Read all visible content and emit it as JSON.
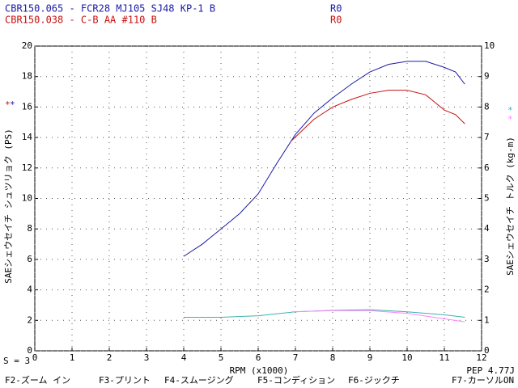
{
  "header": {
    "lines": [
      {
        "text": "CBR150.065 - FCR28 MJ105 SJ48 KP-1 B",
        "tag": "R0",
        "color": "#1a1aa8"
      },
      {
        "text": "CBR150.038 - C-B AA #110 B",
        "tag": "R0",
        "color": "#c81010"
      }
    ]
  },
  "chart_data": {
    "type": "line",
    "x_label": "RPM (x1000)",
    "y_label": "SAEシェウセイチ シュツリョク (PS)",
    "y2_label": "SAEシェウセイチ トルク (kg-m)",
    "xlim": [
      0,
      12
    ],
    "xticks": [
      0,
      1,
      2,
      3,
      4,
      5,
      6,
      7,
      8,
      9,
      10,
      11,
      12
    ],
    "ylim": [
      0,
      20
    ],
    "yticks": [
      0,
      2,
      4,
      6,
      8,
      10,
      12,
      14,
      16,
      18,
      20
    ],
    "y2lim": [
      0,
      10
    ],
    "y2ticks": [
      0,
      1,
      2,
      3,
      4,
      5,
      6,
      7,
      8,
      9,
      10
    ],
    "grid": true,
    "marks": {
      "left": "*",
      "right": "*"
    },
    "series": [
      {
        "color": "#1a1aa8",
        "axis": "y",
        "x": [
          4,
          4.5,
          5,
          5.5,
          6,
          6.5,
          7,
          7.5,
          8,
          8.5,
          9,
          9.5,
          10,
          10.5,
          11,
          11.3,
          11.55
        ],
        "values": [
          6.2,
          7.0,
          8.0,
          9.0,
          10.3,
          12.3,
          14.2,
          15.6,
          16.6,
          17.5,
          18.3,
          18.8,
          19.0,
          19.0,
          18.6,
          18.3,
          17.5
        ]
      },
      {
        "color": "#c81010",
        "axis": "y",
        "x": [
          6.9,
          7.5,
          8,
          8.5,
          9,
          9.5,
          10,
          10.5,
          11,
          11.3,
          11.55
        ],
        "values": [
          13.8,
          15.2,
          16.0,
          16.5,
          16.9,
          17.1,
          17.1,
          16.8,
          15.8,
          15.5,
          14.9
        ]
      },
      {
        "color": "#40b0b0",
        "axis": "y2",
        "x": [
          4,
          5,
          6,
          7,
          8,
          9,
          10,
          11,
          11.55
        ],
        "values": [
          1.1,
          1.1,
          1.15,
          1.28,
          1.33,
          1.35,
          1.28,
          1.18,
          1.1
        ]
      },
      {
        "color": "#ff80ff",
        "axis": "y2",
        "x": [
          6.9,
          8,
          9,
          10,
          11,
          11.55
        ],
        "values": [
          1.28,
          1.32,
          1.32,
          1.23,
          1.05,
          0.95
        ]
      }
    ]
  },
  "footer": {
    "smoothing": "S = 3",
    "pep": "PEP 4.77J",
    "keys": [
      "F2-ズーム イン",
      "F3-プリント",
      "F4-スムージング",
      "F5-コンディション",
      "F6-ジックチ",
      "F7-カーソルON"
    ]
  }
}
